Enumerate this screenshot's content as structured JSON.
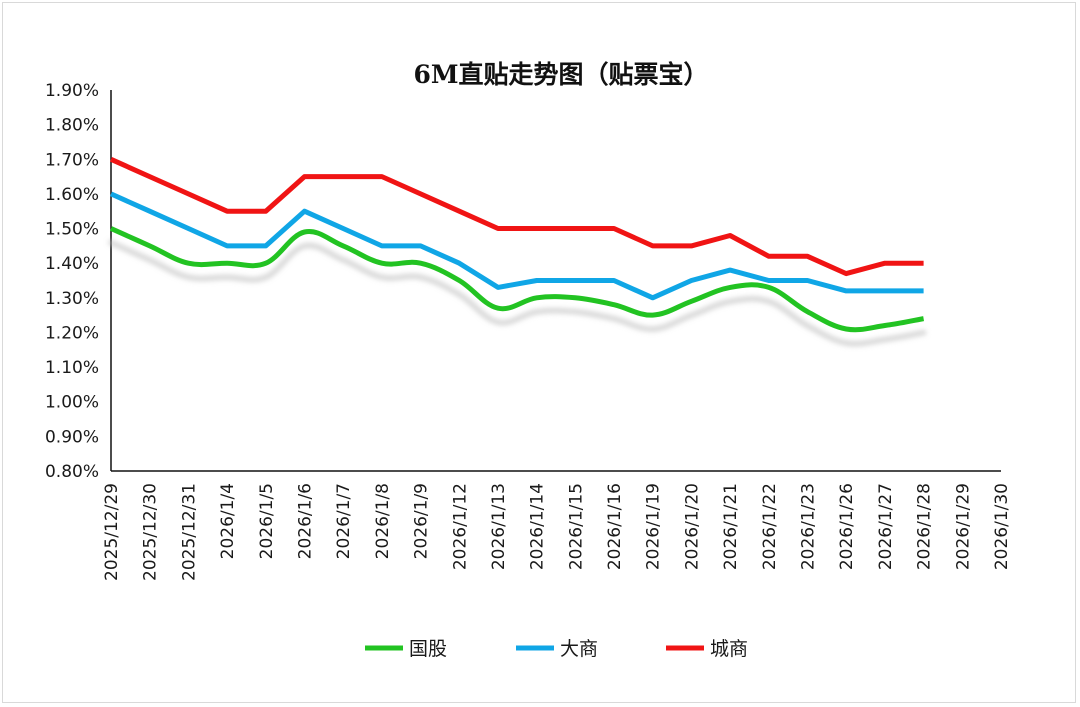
{
  "chart_data": {
    "type": "line",
    "title": "6M直贴走势图（贴票宝）",
    "xlabel": "",
    "ylabel": "",
    "ylim": [
      0.8,
      1.9
    ],
    "y_ticks": [
      "0.80%",
      "0.90%",
      "1.00%",
      "1.10%",
      "1.20%",
      "1.30%",
      "1.40%",
      "1.50%",
      "1.60%",
      "1.70%",
      "1.80%",
      "1.90%"
    ],
    "grid": false,
    "legend_position": "bottom",
    "categories": [
      "2025/12/29",
      "2025/12/30",
      "2025/12/31",
      "2026/1/4",
      "2026/1/5",
      "2026/1/6",
      "2026/1/7",
      "2026/1/8",
      "2026/1/9",
      "2026/1/12",
      "2026/1/13",
      "2026/1/14",
      "2026/1/15",
      "2026/1/16",
      "2026/1/19",
      "2026/1/20",
      "2026/1/21",
      "2026/1/22",
      "2026/1/23",
      "2026/1/26",
      "2026/1/27",
      "2026/1/28",
      "2026/1/29",
      "2026/1/30"
    ],
    "series": [
      {
        "name": "国股",
        "color": "#22c322",
        "smooth": true,
        "shadow": true,
        "values": [
          1.5,
          1.45,
          1.4,
          1.4,
          1.4,
          1.49,
          1.45,
          1.4,
          1.4,
          1.35,
          1.27,
          1.3,
          1.3,
          1.28,
          1.25,
          1.29,
          1.33,
          1.33,
          1.26,
          1.21,
          1.22,
          1.24,
          null,
          null
        ]
      },
      {
        "name": "大商",
        "color": "#10a6e6",
        "smooth": false,
        "shadow": false,
        "values": [
          1.6,
          1.55,
          1.5,
          1.45,
          1.45,
          1.55,
          1.5,
          1.45,
          1.45,
          1.4,
          1.33,
          1.35,
          1.35,
          1.35,
          1.3,
          1.35,
          1.38,
          1.35,
          1.35,
          1.32,
          1.32,
          1.32,
          null,
          null
        ]
      },
      {
        "name": "城商",
        "color": "#f01414",
        "smooth": false,
        "shadow": false,
        "values": [
          1.7,
          1.65,
          1.6,
          1.55,
          1.55,
          1.65,
          1.65,
          1.65,
          1.6,
          1.55,
          1.5,
          1.5,
          1.5,
          1.5,
          1.45,
          1.45,
          1.48,
          1.42,
          1.42,
          1.37,
          1.4,
          1.4,
          null,
          null
        ]
      }
    ]
  }
}
